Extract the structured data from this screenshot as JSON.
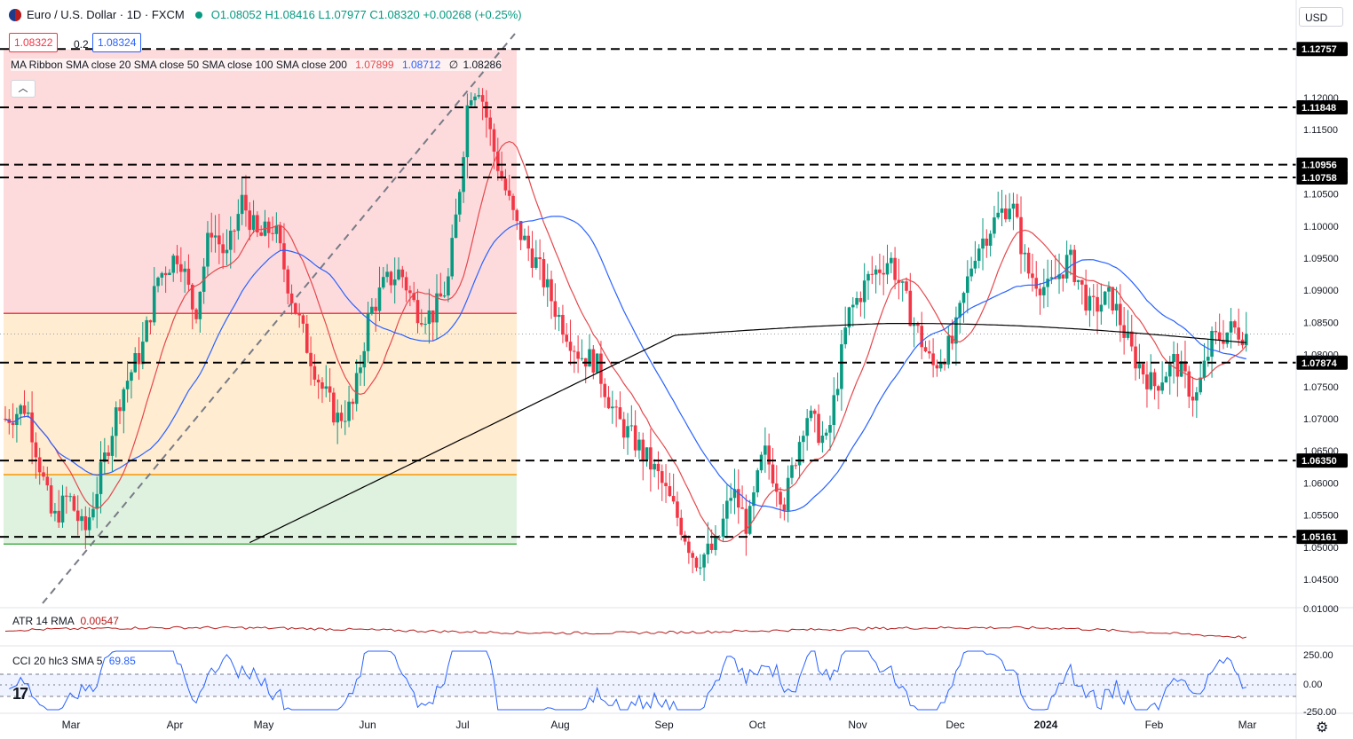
{
  "header": {
    "symbol": "Euro / U.S. Dollar · 1D · FXCM",
    "open": "O1.08052",
    "high": "H1.08416",
    "low": "L1.07977",
    "close": "C1.08320",
    "change": "+0.00268 (+0.25%)"
  },
  "pricebox": {
    "bid": "1.08322",
    "spread": "0.2",
    "ask": "1.08324"
  },
  "ma_ribbon": {
    "label": "MA Ribbon SMA close 20 SMA close 50 SMA close 100 SMA close 200",
    "v20": "1.07899",
    "v50": "1.08712",
    "v100": "∅",
    "v200": "1.08286"
  },
  "atr": {
    "label": "ATR 14 RMA",
    "value": "0.00547"
  },
  "cci": {
    "label": "CCI 20 hlc3 SMA 5",
    "value": "69.85"
  },
  "currency_button": "USD",
  "colors": {
    "up": "#089981",
    "down": "#f23645",
    "sma20": "#e5484d",
    "sma50": "#2962ff",
    "sma200": "#000000",
    "atr": "#b71c1c",
    "cci": "#2962ff"
  },
  "chart_data": {
    "type": "candlestick",
    "y_ticks": [
      "1.12000",
      "1.11500",
      "1.10500",
      "1.10000",
      "1.09500",
      "1.09000",
      "1.08500",
      "1.08000",
      "1.07500",
      "1.07000",
      "1.06500",
      "1.06000",
      "1.05500",
      "1.05000",
      "1.04500"
    ],
    "y_tick_values": [
      1.12,
      1.115,
      1.105,
      1.1,
      1.095,
      1.09,
      1.085,
      1.08,
      1.075,
      1.07,
      1.065,
      1.06,
      1.055,
      1.05,
      1.045
    ],
    "ylim": [
      1.041,
      1.1305
    ],
    "levels": [
      {
        "value": 1.12757,
        "label": "1.12757"
      },
      {
        "value": 1.11848,
        "label": "1.11848"
      },
      {
        "value": 1.10956,
        "label": "1.10956"
      },
      {
        "value": 1.10758,
        "label": "1.10758"
      },
      {
        "value": 1.07874,
        "label": "1.07874"
      },
      {
        "value": 1.0635,
        "label": "1.06350"
      },
      {
        "value": 1.05161,
        "label": "1.05161"
      }
    ],
    "x_labels": [
      "Mar",
      "Apr",
      "May",
      "Jun",
      "Jul",
      "Aug",
      "Sep",
      "Oct",
      "Nov",
      "Dec",
      "2024",
      "Jan",
      "Feb",
      "Mar"
    ],
    "atr_ticks": [
      "0.01000"
    ],
    "cci_ticks": [
      "250.00",
      "0.00",
      "-250.00"
    ],
    "fib_zones": [
      {
        "from": 1.1275,
        "to": 1.0864,
        "color": "red"
      },
      {
        "from": 1.0864,
        "to": 1.0613,
        "color": "orange"
      },
      {
        "from": 1.0613,
        "to": 1.0505,
        "color": "green"
      }
    ]
  }
}
